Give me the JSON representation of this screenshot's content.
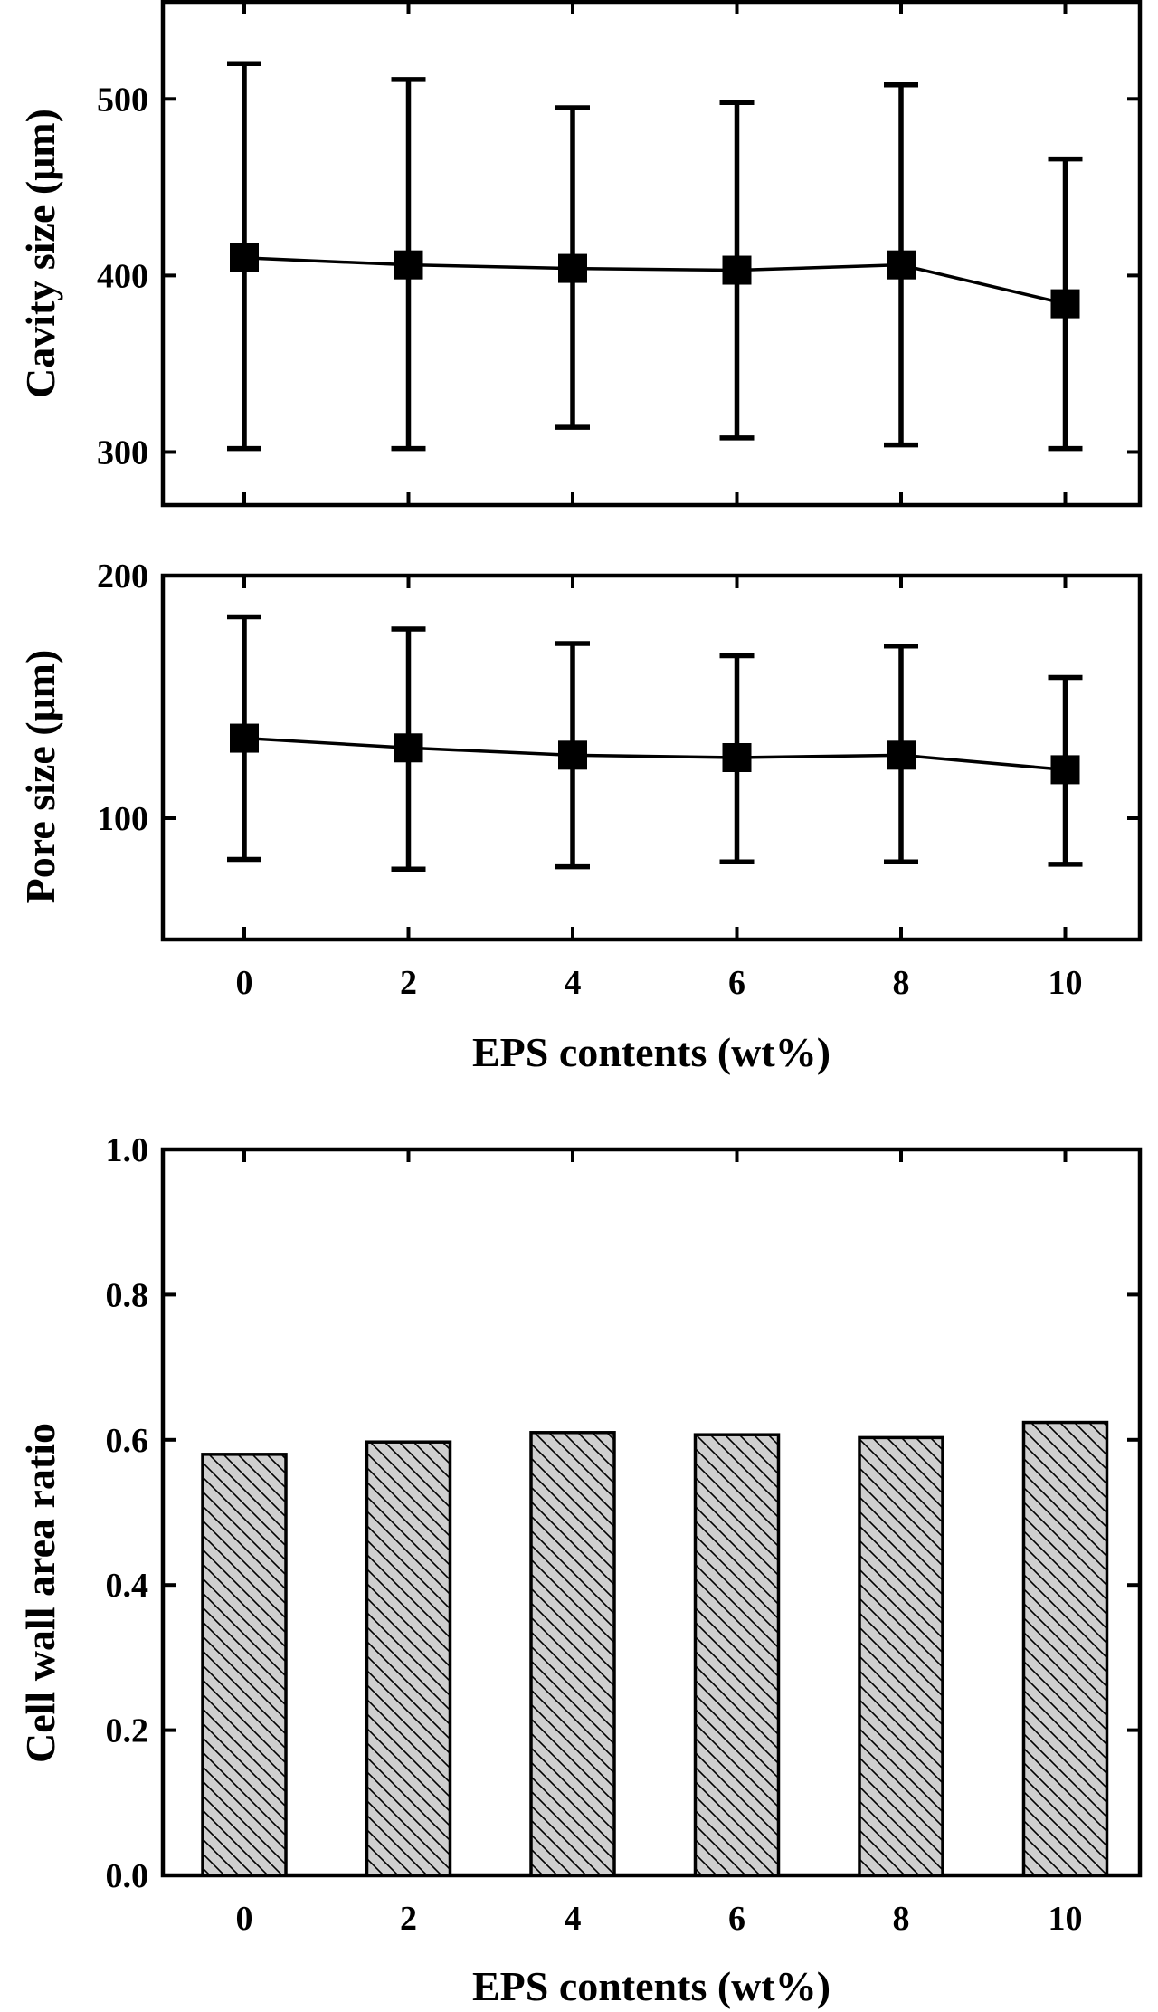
{
  "chart_data": [
    {
      "type": "scatter",
      "ylabel": "Cavity size (μm)",
      "xlabel": "",
      "ylim": [
        270,
        555
      ],
      "yticks": [
        300,
        400,
        500
      ],
      "x": [
        0,
        2,
        4,
        6,
        8,
        10
      ],
      "series": [
        {
          "values": [
            410,
            406,
            404,
            403,
            406,
            384
          ],
          "err_low": [
            302,
            302,
            314,
            308,
            304,
            302
          ],
          "err_high": [
            520,
            511,
            495,
            498,
            508,
            466
          ]
        }
      ],
      "grid": false
    },
    {
      "type": "scatter",
      "ylabel": "Pore size (μm)",
      "xlabel": "EPS contents (wt%)",
      "ylim": [
        50,
        200
      ],
      "yticks": [
        100,
        200
      ],
      "x": [
        0,
        2,
        4,
        6,
        8,
        10
      ],
      "xticks": [
        "0",
        "2",
        "4",
        "6",
        "8",
        "10"
      ],
      "series": [
        {
          "values": [
            133,
            129,
            126,
            125,
            126,
            120
          ],
          "err_low": [
            83,
            79,
            80,
            82,
            82,
            81
          ],
          "err_high": [
            183,
            178,
            172,
            167,
            171,
            158
          ]
        }
      ],
      "grid": false
    },
    {
      "type": "bar",
      "ylabel": "Cell wall area ratio",
      "xlabel": "EPS contents (wt%)",
      "ylim": [
        0.0,
        1.0
      ],
      "yticks": [
        "0.0",
        "0.2",
        "0.4",
        "0.6",
        "0.8",
        "1.0"
      ],
      "categories": [
        "0",
        "2",
        "4",
        "6",
        "8",
        "10"
      ],
      "values": [
        0.58,
        0.597,
        0.61,
        0.607,
        0.603,
        0.624
      ],
      "grid": false
    }
  ]
}
